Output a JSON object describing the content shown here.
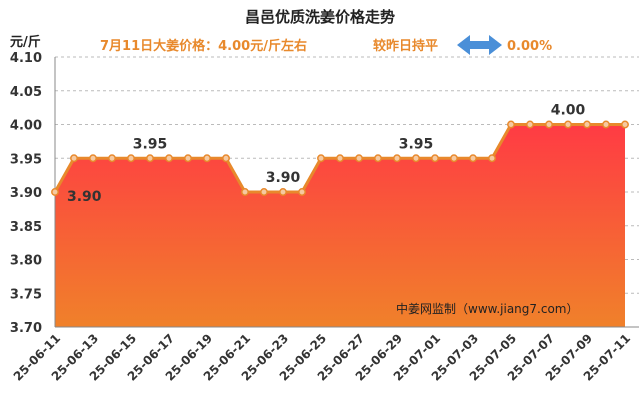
{
  "title": "昌邑优质洗姜价格走势",
  "unit": "元/斤",
  "info": {
    "price_text": "7月11日大姜价格：4.00元/斤左右",
    "compare_label": "较昨日持平",
    "change": "0.00%",
    "text_color": "#e8892c",
    "arrow_color": "#4a8fd8",
    "arrow_icon": "double-arrow-icon"
  },
  "watermark": "中姜网监制（www.jiang7.com）",
  "colors": {
    "line": "#e8892c",
    "fill_top": "#ff3b44",
    "fill_bottom": "#f0812a",
    "grid": "#bbbbbb"
  },
  "chart_data": {
    "type": "area",
    "title": "昌邑优质洗姜价格走势",
    "xlabel": "",
    "ylabel": "元/斤",
    "ylim": [
      3.7,
      4.1
    ],
    "yticks": [
      "4.10",
      "4.05",
      "4.00",
      "3.95",
      "3.90",
      "3.85",
      "3.80",
      "3.75",
      "3.70"
    ],
    "x": [
      "25-06-11",
      "25-06-12",
      "25-06-13",
      "25-06-14",
      "25-06-15",
      "25-06-16",
      "25-06-17",
      "25-06-18",
      "25-06-19",
      "25-06-20",
      "25-06-21",
      "25-06-22",
      "25-06-23",
      "25-06-24",
      "25-06-25",
      "25-06-26",
      "25-06-27",
      "25-06-28",
      "25-06-29",
      "25-06-30",
      "25-07-01",
      "25-07-02",
      "25-07-03",
      "25-07-04",
      "25-07-05",
      "25-07-06",
      "25-07-07",
      "25-07-08",
      "25-07-09",
      "25-07-10",
      "25-07-11"
    ],
    "xtick_labels": [
      "25-06-11",
      "25-06-13",
      "25-06-15",
      "25-06-17",
      "25-06-19",
      "25-06-21",
      "25-06-23",
      "25-06-25",
      "25-06-27",
      "25-06-29",
      "25-07-01",
      "25-07-03",
      "25-07-05",
      "25-07-07",
      "25-07-09",
      "25-07-11"
    ],
    "values": [
      3.9,
      3.95,
      3.95,
      3.95,
      3.95,
      3.95,
      3.95,
      3.95,
      3.95,
      3.95,
      3.9,
      3.9,
      3.9,
      3.9,
      3.95,
      3.95,
      3.95,
      3.95,
      3.95,
      3.95,
      3.95,
      3.95,
      3.95,
      3.95,
      4.0,
      4.0,
      4.0,
      4.0,
      4.0,
      4.0,
      4.0
    ],
    "data_labels": [
      {
        "index": 0,
        "text": "3.90"
      },
      {
        "index": 5,
        "text": "3.95"
      },
      {
        "index": 12,
        "text": "3.90"
      },
      {
        "index": 19,
        "text": "3.95"
      },
      {
        "index": 27,
        "text": "4.00"
      }
    ],
    "grid": true
  }
}
